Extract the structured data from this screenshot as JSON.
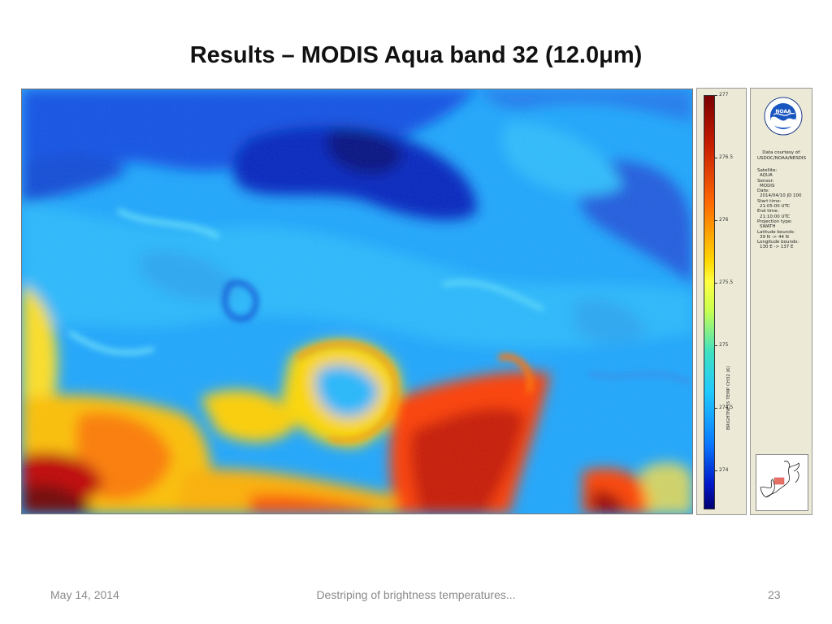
{
  "slide": {
    "title": "Results – MODIS Aqua band 32 (12.0μm)",
    "footer_date": "May 14, 2014",
    "footer_center": "Destriping of brightness temperatures...",
    "page_number": "23"
  },
  "colorbar": {
    "title": "BRIGHTNESS TEMP CH32 (K)",
    "ticks": [
      "277",
      "276.5",
      "276",
      "275.5",
      "275",
      "274.5",
      "274"
    ]
  },
  "info": {
    "logo_text": "NOAA",
    "courtesy_line1": "Data courtesy of:",
    "courtesy_line2": "USDOC/NOAA/NESDIS",
    "satellite_label": "Satellite:",
    "satellite": "AQUA",
    "sensor_label": "Sensor:",
    "sensor": "MODIS",
    "date_label": "Date:",
    "date": "2014/04/10 JD 100",
    "start_label": "Start time:",
    "start_time": "21:05:00 UTC",
    "end_label": "End time:",
    "end_time": "21:10:00 UTC",
    "projection_label": "Projection type:",
    "projection": "SWATH",
    "lat_label": "Latitude bounds:",
    "lat_bounds": "39 N -> 44 N",
    "lon_label": "Longitude bounds:",
    "lon_bounds": "130 E -> 137 E"
  }
}
